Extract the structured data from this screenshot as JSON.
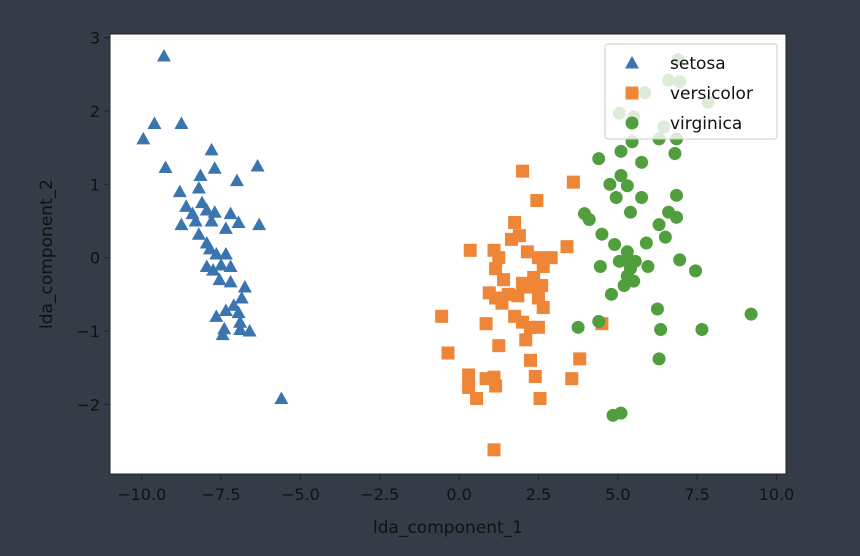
{
  "chart_data": {
    "type": "scatter",
    "xlabel": "lda_component_1",
    "ylabel": "lda_component_2",
    "xlim": [
      -11,
      10.3
    ],
    "ylim": [
      -2.95,
      3.05
    ],
    "xticks": [
      -10.0,
      -7.5,
      -5.0,
      -2.5,
      0.0,
      2.5,
      5.0,
      7.5,
      10.0
    ],
    "xtick_labels": [
      "−10.0",
      "−7.5",
      "−5.0",
      "−2.5",
      "0.0",
      "2.5",
      "5.0",
      "7.5",
      "10.0"
    ],
    "yticks": [
      -2,
      -1,
      0,
      1,
      2,
      3
    ],
    "ytick_labels": [
      "−2",
      "−1",
      "0",
      "1",
      "2",
      "3"
    ],
    "grid": false,
    "legend_position": "top-right",
    "series": [
      {
        "name": "setosa",
        "marker": "triangle",
        "color": "#3b75af",
        "points": [
          [
            -9.3,
            2.75
          ],
          [
            -9.95,
            1.62
          ],
          [
            -9.6,
            1.83
          ],
          [
            -8.75,
            1.83
          ],
          [
            -9.25,
            1.23
          ],
          [
            -7.8,
            1.47
          ],
          [
            -7.7,
            1.22
          ],
          [
            -8.15,
            1.12
          ],
          [
            -6.35,
            1.25
          ],
          [
            -7.0,
            1.05
          ],
          [
            -8.8,
            0.9
          ],
          [
            -8.2,
            0.95
          ],
          [
            -8.6,
            0.7
          ],
          [
            -8.4,
            0.6
          ],
          [
            -8.1,
            0.75
          ],
          [
            -7.95,
            0.65
          ],
          [
            -7.7,
            0.62
          ],
          [
            -7.2,
            0.6
          ],
          [
            -8.75,
            0.45
          ],
          [
            -8.3,
            0.5
          ],
          [
            -7.8,
            0.5
          ],
          [
            -7.35,
            0.4
          ],
          [
            -6.95,
            0.48
          ],
          [
            -6.3,
            0.45
          ],
          [
            -8.2,
            0.32
          ],
          [
            -7.95,
            0.2
          ],
          [
            -7.85,
            0.12
          ],
          [
            -7.65,
            0.05
          ],
          [
            -7.35,
            0.05
          ],
          [
            -7.95,
            -0.12
          ],
          [
            -7.75,
            -0.17
          ],
          [
            -7.5,
            -0.1
          ],
          [
            -7.2,
            -0.12
          ],
          [
            -7.55,
            -0.3
          ],
          [
            -7.2,
            -0.33
          ],
          [
            -6.75,
            -0.4
          ],
          [
            -6.85,
            -0.55
          ],
          [
            -7.1,
            -0.65
          ],
          [
            -7.35,
            -0.72
          ],
          [
            -6.95,
            -0.75
          ],
          [
            -6.9,
            -0.88
          ],
          [
            -7.65,
            -0.8
          ],
          [
            -7.4,
            -0.97
          ],
          [
            -6.9,
            -0.98
          ],
          [
            -6.6,
            -1.0
          ],
          [
            -7.45,
            -1.05
          ],
          [
            -5.6,
            -1.92
          ]
        ]
      },
      {
        "name": "versicolor",
        "marker": "square",
        "color": "#ef8536",
        "points": [
          [
            2.0,
            1.18
          ],
          [
            3.6,
            1.03
          ],
          [
            2.45,
            0.78
          ],
          [
            1.75,
            0.48
          ],
          [
            1.9,
            0.3
          ],
          [
            1.65,
            0.25
          ],
          [
            0.35,
            0.1
          ],
          [
            1.1,
            0.1
          ],
          [
            2.15,
            0.08
          ],
          [
            3.4,
            0.15
          ],
          [
            1.25,
            0.0
          ],
          [
            2.5,
            0.0
          ],
          [
            2.9,
            0.0
          ],
          [
            1.15,
            -0.15
          ],
          [
            2.65,
            -0.12
          ],
          [
            2.35,
            -0.27
          ],
          [
            1.4,
            -0.3
          ],
          [
            2.0,
            -0.35
          ],
          [
            2.2,
            -0.4
          ],
          [
            2.6,
            -0.38
          ],
          [
            0.95,
            -0.48
          ],
          [
            1.15,
            -0.55
          ],
          [
            1.55,
            -0.5
          ],
          [
            1.85,
            -0.52
          ],
          [
            2.5,
            -0.55
          ],
          [
            1.35,
            -0.62
          ],
          [
            2.65,
            -0.68
          ],
          [
            1.75,
            -0.8
          ],
          [
            -0.55,
            -0.8
          ],
          [
            0.85,
            -0.9
          ],
          [
            2.0,
            -0.88
          ],
          [
            2.25,
            -0.95
          ],
          [
            2.5,
            -0.95
          ],
          [
            4.5,
            -0.9
          ],
          [
            1.25,
            -1.2
          ],
          [
            2.1,
            -1.12
          ],
          [
            -0.35,
            -1.3
          ],
          [
            3.8,
            -1.38
          ],
          [
            2.25,
            -1.4
          ],
          [
            0.3,
            -1.6
          ],
          [
            0.85,
            -1.65
          ],
          [
            1.1,
            -1.63
          ],
          [
            2.4,
            -1.62
          ],
          [
            3.55,
            -1.65
          ],
          [
            0.3,
            -1.77
          ],
          [
            1.15,
            -1.75
          ],
          [
            0.55,
            -1.92
          ],
          [
            2.55,
            -1.92
          ],
          [
            1.1,
            -2.62
          ]
        ]
      },
      {
        "name": "virginica",
        "marker": "circle",
        "color": "#519e3e",
        "points": [
          [
            6.9,
            2.7
          ],
          [
            6.6,
            2.42
          ],
          [
            6.95,
            2.4
          ],
          [
            5.85,
            2.25
          ],
          [
            7.85,
            2.12
          ],
          [
            5.05,
            1.97
          ],
          [
            5.5,
            1.92
          ],
          [
            6.45,
            1.78
          ],
          [
            6.3,
            1.62
          ],
          [
            6.85,
            1.62
          ],
          [
            5.45,
            1.58
          ],
          [
            6.8,
            1.42
          ],
          [
            5.1,
            1.45
          ],
          [
            4.4,
            1.35
          ],
          [
            5.75,
            1.3
          ],
          [
            5.1,
            1.12
          ],
          [
            4.75,
            1.0
          ],
          [
            5.3,
            0.98
          ],
          [
            4.95,
            0.82
          ],
          [
            5.75,
            0.82
          ],
          [
            6.85,
            0.85
          ],
          [
            5.4,
            0.62
          ],
          [
            6.6,
            0.62
          ],
          [
            3.95,
            0.6
          ],
          [
            4.1,
            0.52
          ],
          [
            6.3,
            0.45
          ],
          [
            6.85,
            0.55
          ],
          [
            4.5,
            0.32
          ],
          [
            6.5,
            0.28
          ],
          [
            4.9,
            0.18
          ],
          [
            5.3,
            0.08
          ],
          [
            5.9,
            0.2
          ],
          [
            4.45,
            -0.12
          ],
          [
            5.05,
            -0.05
          ],
          [
            5.3,
            -0.05
          ],
          [
            5.55,
            -0.05
          ],
          [
            5.4,
            -0.15
          ],
          [
            5.95,
            -0.12
          ],
          [
            6.95,
            -0.03
          ],
          [
            5.3,
            -0.25
          ],
          [
            5.5,
            -0.32
          ],
          [
            5.2,
            -0.38
          ],
          [
            7.45,
            -0.18
          ],
          [
            4.8,
            -0.5
          ],
          [
            6.25,
            -0.7
          ],
          [
            4.4,
            -0.87
          ],
          [
            3.75,
            -0.95
          ],
          [
            6.35,
            -0.98
          ],
          [
            7.65,
            -0.98
          ],
          [
            9.2,
            -0.77
          ],
          [
            6.3,
            -1.38
          ],
          [
            4.85,
            -2.15
          ],
          [
            5.1,
            -2.12
          ]
        ]
      }
    ]
  }
}
